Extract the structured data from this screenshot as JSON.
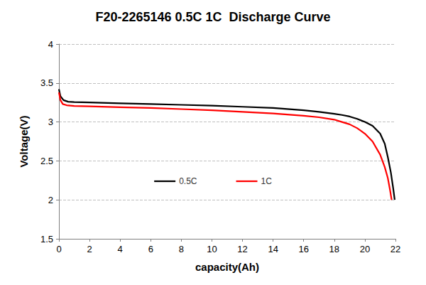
{
  "chart_data": {
    "type": "line",
    "title": "F20-2265146 0.5C 1C  Discharge Curve",
    "x_label": "capacity(Ah)",
    "y_label": "Voltage(V)",
    "xlim": [
      0,
      22
    ],
    "xticks": [
      0,
      2,
      4,
      6,
      8,
      10,
      12,
      14,
      16,
      18,
      20,
      22
    ],
    "ylim": [
      1.5,
      4
    ],
    "yticks": [
      1.5,
      2,
      2.5,
      3,
      3.5,
      4
    ],
    "grid": true,
    "legend": "center",
    "series": [
      {
        "name": "0.5C",
        "color": "#000000",
        "line_style": "solid",
        "x": [
          0,
          0.1,
          0.3,
          0.6,
          1,
          2,
          4,
          6,
          8,
          10,
          12,
          14,
          16,
          17,
          18,
          18.5,
          19,
          19.5,
          20,
          20.5,
          21,
          21.3,
          21.5,
          21.7,
          21.85,
          21.95
        ],
        "values": [
          3.42,
          3.33,
          3.28,
          3.26,
          3.255,
          3.25,
          3.24,
          3.23,
          3.22,
          3.21,
          3.195,
          3.18,
          3.15,
          3.13,
          3.105,
          3.09,
          3.07,
          3.04,
          3.0,
          2.95,
          2.85,
          2.72,
          2.55,
          2.35,
          2.15,
          2.0
        ]
      },
      {
        "name": "1C",
        "color": "#ff0000",
        "line_style": "solid",
        "x": [
          0,
          0.1,
          0.25,
          0.5,
          1,
          2,
          4,
          6,
          8,
          10,
          12,
          14,
          16,
          17,
          18,
          18.5,
          19,
          19.5,
          20,
          20.5,
          21,
          21.3,
          21.5,
          21.65,
          21.75
        ],
        "values": [
          3.38,
          3.28,
          3.23,
          3.215,
          3.205,
          3.2,
          3.19,
          3.18,
          3.165,
          3.15,
          3.13,
          3.11,
          3.08,
          3.06,
          3.03,
          3.0,
          2.97,
          2.92,
          2.85,
          2.75,
          2.58,
          2.42,
          2.28,
          2.12,
          2.0
        ]
      }
    ]
  }
}
